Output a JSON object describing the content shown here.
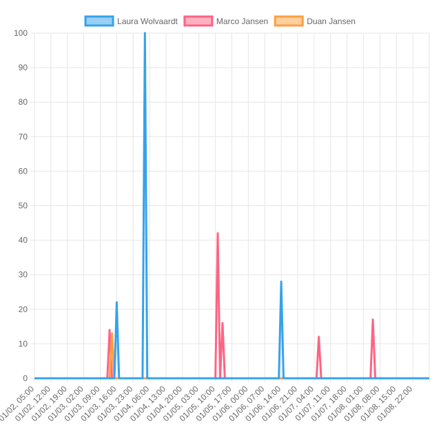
{
  "chart_data": {
    "type": "line",
    "ylim": [
      0,
      100
    ],
    "yticks": [
      0,
      10,
      20,
      30,
      40,
      50,
      60,
      70,
      80,
      90,
      100
    ],
    "xlabel": "",
    "ylabel": "",
    "title": "",
    "grid": true,
    "legend_position": "top-center",
    "x_tick_labels": [
      "01/02, 05:00",
      "01/02, 12:00",
      "01/02, 19:00",
      "01/03, 02:00",
      "01/03, 09:00",
      "01/03, 16:00",
      "01/03, 23:00",
      "01/04, 06:00",
      "01/04, 13:00",
      "01/04, 20:00",
      "01/05, 03:00",
      "01/05, 10:00",
      "01/05, 17:00",
      "01/06, 00:00",
      "01/06, 07:00",
      "01/06, 14:00",
      "01/06, 21:00",
      "01/07, 04:00",
      "01/07, 11:00",
      "01/07, 18:00",
      "01/08, 01:00",
      "01/08, 08:00",
      "01/08, 15:00",
      "01/08, 22:00"
    ],
    "x_range": [
      "01/02, 05:00",
      "01/09, 05:00"
    ],
    "series": [
      {
        "name": "Laura Wolvaardt",
        "color": "#36a2eb",
        "fill": "#9ad0f5",
        "points": [
          {
            "x": "01/03, 15:00",
            "y": 0
          },
          {
            "x": "01/03, 16:00",
            "y": 22
          },
          {
            "x": "01/03, 17:00",
            "y": 0
          },
          {
            "x": "01/04, 03:00",
            "y": 0
          },
          {
            "x": "01/04, 04:00",
            "y": 100
          },
          {
            "x": "01/04, 05:00",
            "y": 0
          },
          {
            "x": "01/06, 13:00",
            "y": 0
          },
          {
            "x": "01/06, 14:00",
            "y": 28
          },
          {
            "x": "01/06, 15:00",
            "y": 0
          }
        ]
      },
      {
        "name": "Marco Jansen",
        "color": "#ff6384",
        "fill": "#ffb1c1",
        "points": [
          {
            "x": "01/03, 12:00",
            "y": 0
          },
          {
            "x": "01/03, 13:00",
            "y": 14
          },
          {
            "x": "01/03, 14:00",
            "y": 0
          },
          {
            "x": "01/05, 10:00",
            "y": 0
          },
          {
            "x": "01/05, 11:00",
            "y": 42
          },
          {
            "x": "01/05, 12:00",
            "y": 0
          },
          {
            "x": "01/05, 12:00",
            "y": 0
          },
          {
            "x": "01/05, 13:00",
            "y": 16
          },
          {
            "x": "01/05, 14:00",
            "y": 0
          },
          {
            "x": "01/06, 13:00",
            "y": 0
          },
          {
            "x": "01/07, 05:00",
            "y": 0
          },
          {
            "x": "01/07, 06:00",
            "y": 12
          },
          {
            "x": "01/07, 07:00",
            "y": 0
          },
          {
            "x": "01/08, 04:00",
            "y": 0
          },
          {
            "x": "01/08, 05:00",
            "y": 17
          },
          {
            "x": "01/08, 06:00",
            "y": 0
          }
        ]
      },
      {
        "name": "Duan Jansen",
        "color": "#ff9f40",
        "fill": "#ffcf9f",
        "points": [
          {
            "x": "01/03, 13:00",
            "y": 0
          },
          {
            "x": "01/03, 14:00",
            "y": 13
          },
          {
            "x": "01/03, 15:00",
            "y": 0
          }
        ]
      }
    ]
  }
}
